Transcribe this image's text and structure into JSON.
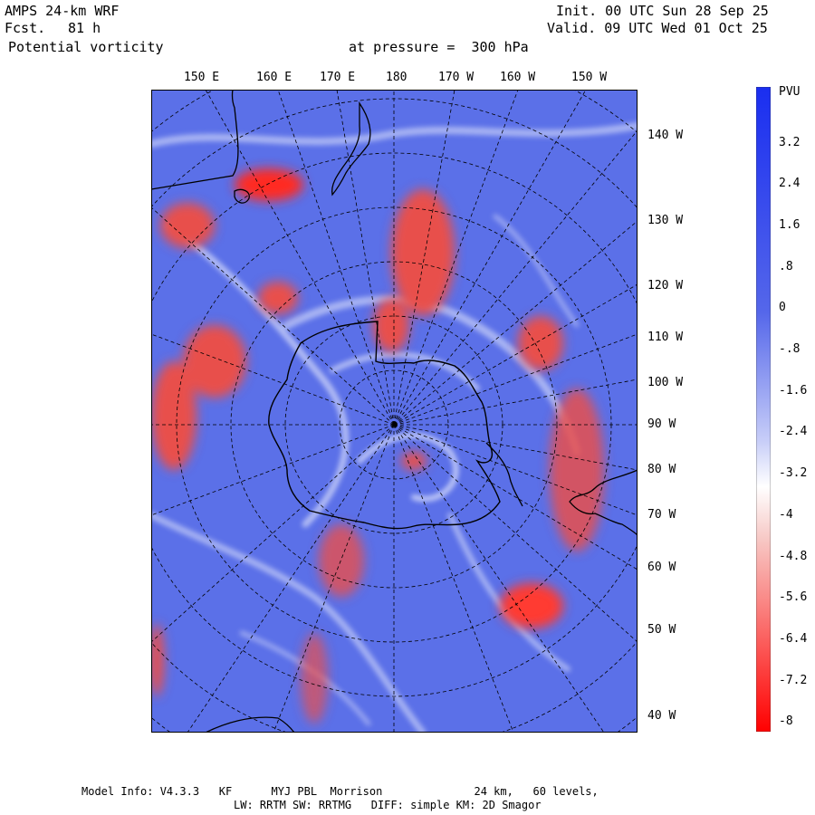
{
  "header": {
    "model": "AMPS 24-km WRF",
    "forecast_label": "Fcst.",
    "forecast_value": "81 h",
    "field": "Potential vorticity",
    "pressure": "at pressure =  300 hPa",
    "init": "Init. 00 UTC Sun 28 Sep 25",
    "valid": "Valid. 09 UTC Wed 01 Oct 25"
  },
  "map": {
    "top_longitudes": [
      "150 E",
      "160 E",
      "170 E",
      "180",
      "170 W",
      "160 W",
      "150 W"
    ],
    "right_longitudes": [
      "140 W",
      "130 W",
      "120 W",
      "110 W",
      "100 W",
      "90 W",
      "80 W",
      "70 W",
      "60 W",
      "50 W",
      "40 W"
    ]
  },
  "colorbar": {
    "unit": "PVU",
    "labels": [
      "3.2",
      "2.4",
      "1.6",
      ".8",
      "0",
      "-.8",
      "-1.6",
      "-2.4",
      "-3.2",
      "-4",
      "-4.8",
      "-5.6",
      "-6.4",
      "-7.2",
      "-8"
    ],
    "positive_color": "#2233ee",
    "neutral_color": "#ffffff",
    "negative_color": "#ff0000"
  },
  "footer": {
    "line1": "Model Info: V4.3.3   KF      MYJ PBL  Morrison              24 km,   60 levels,",
    "line2": "LW: RRTM SW: RRTMG   DIFF: simple KM: 2D Smagor"
  }
}
